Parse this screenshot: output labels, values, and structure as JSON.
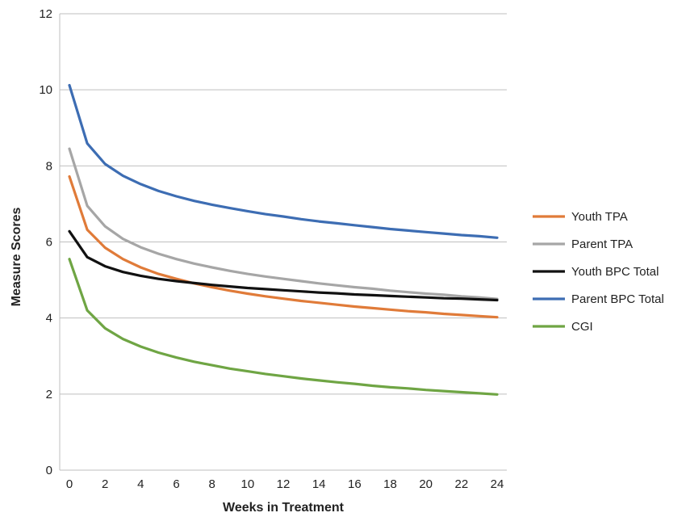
{
  "chart_data": {
    "type": "line",
    "title": "",
    "xlabel": "Weeks in Treatment",
    "ylabel": "Measure Scores",
    "xlim": [
      0,
      24
    ],
    "ylim": [
      0,
      12
    ],
    "x_ticks": [
      0,
      2,
      4,
      6,
      8,
      10,
      12,
      14,
      16,
      18,
      20,
      22,
      24
    ],
    "y_ticks": [
      0,
      2,
      4,
      6,
      8,
      10,
      12
    ],
    "grid": "horizontal",
    "legend_position": "right",
    "x": [
      0,
      1,
      2,
      3,
      4,
      5,
      6,
      7,
      8,
      9,
      10,
      11,
      12,
      13,
      14,
      15,
      16,
      17,
      18,
      19,
      20,
      21,
      22,
      23,
      24
    ],
    "series": [
      {
        "name": "Youth TPA",
        "color": "#e07b39",
        "values": [
          7.72,
          6.32,
          5.85,
          5.55,
          5.33,
          5.16,
          5.03,
          4.91,
          4.81,
          4.72,
          4.64,
          4.57,
          4.51,
          4.45,
          4.4,
          4.35,
          4.3,
          4.26,
          4.22,
          4.18,
          4.15,
          4.11,
          4.08,
          4.05,
          4.02
        ]
      },
      {
        "name": "Parent TPA",
        "color": "#a6a6a6",
        "values": [
          8.45,
          6.95,
          6.41,
          6.08,
          5.86,
          5.69,
          5.55,
          5.43,
          5.33,
          5.24,
          5.16,
          5.09,
          5.03,
          4.97,
          4.91,
          4.86,
          4.81,
          4.77,
          4.72,
          4.68,
          4.64,
          4.61,
          4.57,
          4.54,
          4.5
        ]
      },
      {
        "name": "Youth BPC Total",
        "color": "#111111",
        "values": [
          6.28,
          5.6,
          5.36,
          5.21,
          5.11,
          5.03,
          4.97,
          4.92,
          4.87,
          4.83,
          4.79,
          4.76,
          4.73,
          4.7,
          4.67,
          4.65,
          4.62,
          4.6,
          4.58,
          4.56,
          4.54,
          4.52,
          4.51,
          4.49,
          4.47
        ]
      },
      {
        "name": "Parent BPC Total",
        "color": "#3d6db3",
        "values": [
          10.12,
          8.59,
          8.05,
          7.74,
          7.52,
          7.34,
          7.2,
          7.08,
          6.98,
          6.89,
          6.81,
          6.73,
          6.67,
          6.6,
          6.54,
          6.49,
          6.44,
          6.39,
          6.34,
          6.3,
          6.26,
          6.22,
          6.18,
          6.15,
          6.11
        ]
      },
      {
        "name": "CGI",
        "color": "#6fa544",
        "values": [
          5.55,
          4.2,
          3.73,
          3.45,
          3.25,
          3.09,
          2.96,
          2.85,
          2.76,
          2.67,
          2.6,
          2.53,
          2.47,
          2.41,
          2.36,
          2.31,
          2.27,
          2.22,
          2.18,
          2.15,
          2.11,
          2.08,
          2.05,
          2.02,
          1.99
        ]
      }
    ]
  }
}
